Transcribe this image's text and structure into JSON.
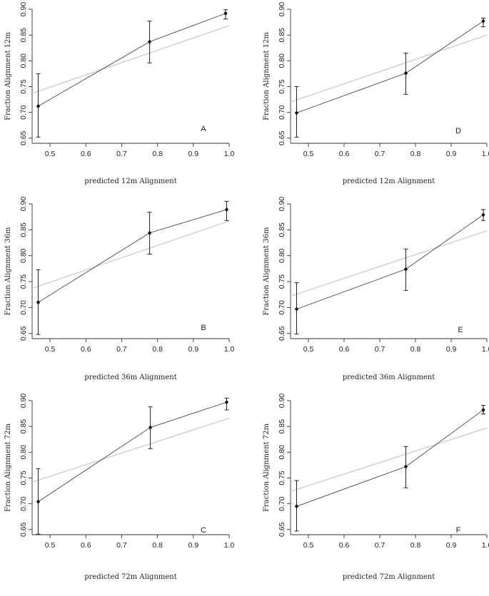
{
  "chart_data": [
    {
      "id": "A",
      "type": "line",
      "panel_label": "A",
      "xlabel": "predicted 12m Alignment",
      "ylabel": "Fraction Alignment 12m",
      "xlim": [
        0.45,
        1.0
      ],
      "ylim": [
        0.64,
        0.9
      ],
      "xticks": [
        "0.5",
        "0.6",
        "0.7",
        "0.8",
        "0.9",
        "1.0"
      ],
      "yticks": [
        "0.65",
        "0.70",
        "0.75",
        "0.80",
        "0.85",
        "0.90"
      ],
      "points": [
        {
          "x": 0.467,
          "y": 0.712,
          "lo": 0.652,
          "hi": 0.775
        },
        {
          "x": 0.778,
          "y": 0.837,
          "lo": 0.796,
          "hi": 0.877
        },
        {
          "x": 0.99,
          "y": 0.892,
          "lo": 0.881,
          "hi": 0.899
        }
      ],
      "fit": [
        {
          "x": 0.45,
          "y": 0.737
        },
        {
          "x": 1.0,
          "y": 0.868
        }
      ]
    },
    {
      "id": "D",
      "type": "line",
      "panel_label": "D",
      "xlabel": "predicted 12m Alignment",
      "ylabel": "Fraction Alignment 12m",
      "xlim": [
        0.45,
        1.0
      ],
      "ylim": [
        0.64,
        0.9
      ],
      "xticks": [
        "0.5",
        "0.6",
        "0.7",
        "0.8",
        "0.9",
        "1.0"
      ],
      "yticks": [
        "0.65",
        "0.70",
        "0.75",
        "0.80",
        "0.85",
        "0.90"
      ],
      "points": [
        {
          "x": 0.467,
          "y": 0.699,
          "lo": 0.652,
          "hi": 0.75
        },
        {
          "x": 0.773,
          "y": 0.776,
          "lo": 0.735,
          "hi": 0.815
        },
        {
          "x": 0.99,
          "y": 0.877,
          "lo": 0.866,
          "hi": 0.883
        }
      ],
      "fit": [
        {
          "x": 0.45,
          "y": 0.72
        },
        {
          "x": 1.0,
          "y": 0.85
        }
      ]
    },
    {
      "id": "B",
      "type": "line",
      "panel_label": "B",
      "xlabel": "predicted 36m Alignment",
      "ylabel": "Fraction Alignment 36m",
      "xlim": [
        0.45,
        1.0
      ],
      "ylim": [
        0.64,
        0.9
      ],
      "xticks": [
        "0.5",
        "0.6",
        "0.7",
        "0.8",
        "0.9",
        "1.0"
      ],
      "yticks": [
        "0.65",
        "0.70",
        "0.75",
        "0.80",
        "0.85",
        "0.90"
      ],
      "points": [
        {
          "x": 0.467,
          "y": 0.71,
          "lo": 0.648,
          "hi": 0.773
        },
        {
          "x": 0.778,
          "y": 0.844,
          "lo": 0.803,
          "hi": 0.884
        },
        {
          "x": 0.993,
          "y": 0.889,
          "lo": 0.868,
          "hi": 0.905
        }
      ],
      "fit": [
        {
          "x": 0.45,
          "y": 0.737
        },
        {
          "x": 1.0,
          "y": 0.867
        }
      ]
    },
    {
      "id": "E",
      "type": "line",
      "panel_label": "E",
      "xlabel": "predicted 36m Alignment",
      "ylabel": "Fraction Alignment 36m",
      "xlim": [
        0.45,
        1.0
      ],
      "ylim": [
        0.64,
        0.9
      ],
      "xticks": [
        "0.5",
        "0.6",
        "0.7",
        "0.8",
        "0.9",
        "1.0"
      ],
      "yticks": [
        "0.65",
        "0.70",
        "0.75",
        "0.80",
        "0.85",
        "0.90"
      ],
      "points": [
        {
          "x": 0.467,
          "y": 0.697,
          "lo": 0.649,
          "hi": 0.748
        },
        {
          "x": 0.773,
          "y": 0.774,
          "lo": 0.733,
          "hi": 0.813
        },
        {
          "x": 0.99,
          "y": 0.879,
          "lo": 0.868,
          "hi": 0.889
        }
      ],
      "fit": [
        {
          "x": 0.45,
          "y": 0.722
        },
        {
          "x": 1.0,
          "y": 0.848
        }
      ]
    },
    {
      "id": "C",
      "type": "line",
      "panel_label": "C",
      "xlabel": "predicted 72m Alignment",
      "ylabel": "Fraction Alignment 72m",
      "xlim": [
        0.45,
        1.0
      ],
      "ylim": [
        0.64,
        0.9
      ],
      "xticks": [
        "0.5",
        "0.6",
        "0.7",
        "0.8",
        "0.9",
        "1.0"
      ],
      "yticks": [
        "0.65",
        "0.70",
        "0.75",
        "0.80",
        "0.85",
        "0.90"
      ],
      "points": [
        {
          "x": 0.467,
          "y": 0.704,
          "lo": 0.641,
          "hi": 0.768
        },
        {
          "x": 0.78,
          "y": 0.848,
          "lo": 0.807,
          "hi": 0.888
        },
        {
          "x": 0.993,
          "y": 0.897,
          "lo": 0.882,
          "hi": 0.905
        }
      ],
      "fit": [
        {
          "x": 0.45,
          "y": 0.742
        },
        {
          "x": 1.0,
          "y": 0.866
        }
      ]
    },
    {
      "id": "F",
      "type": "line",
      "panel_label": "F",
      "xlabel": "predicted 72m Alignment",
      "ylabel": "Fraction Alignment 72m",
      "xlim": [
        0.45,
        1.0
      ],
      "ylim": [
        0.64,
        0.9
      ],
      "xticks": [
        "0.5",
        "0.6",
        "0.7",
        "0.8",
        "0.9",
        "1.0"
      ],
      "yticks": [
        "0.65",
        "0.70",
        "0.75",
        "0.80",
        "0.85",
        "0.90"
      ],
      "points": [
        {
          "x": 0.467,
          "y": 0.695,
          "lo": 0.647,
          "hi": 0.745
        },
        {
          "x": 0.773,
          "y": 0.772,
          "lo": 0.731,
          "hi": 0.811
        },
        {
          "x": 0.99,
          "y": 0.882,
          "lo": 0.874,
          "hi": 0.891
        }
      ],
      "fit": [
        {
          "x": 0.45,
          "y": 0.724
        },
        {
          "x": 1.0,
          "y": 0.847
        }
      ]
    }
  ]
}
